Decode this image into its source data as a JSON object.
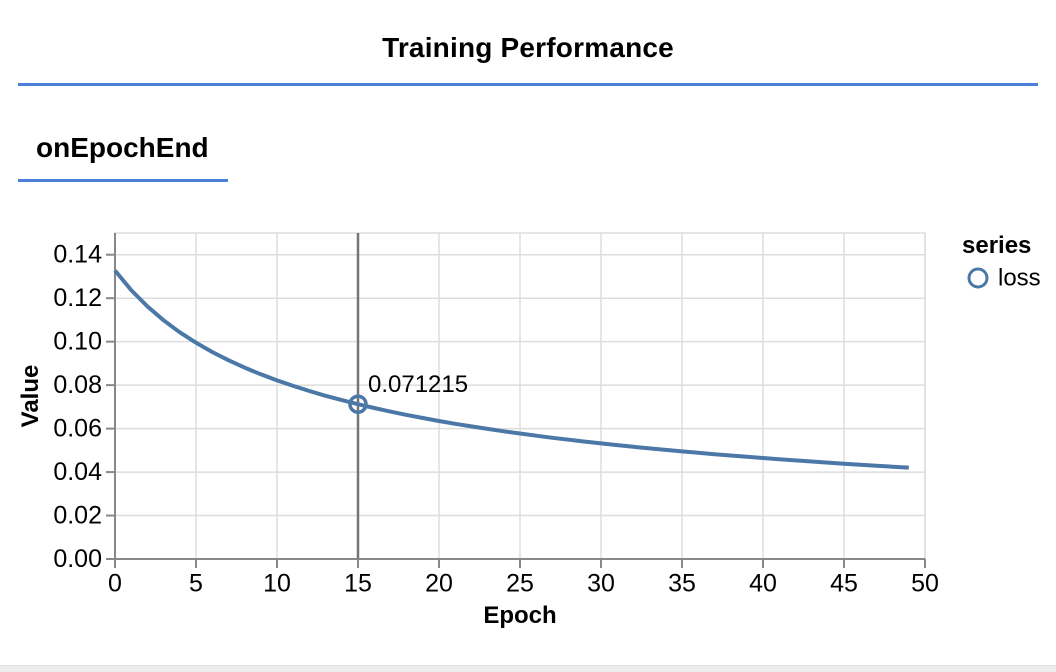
{
  "page": {
    "title": "Training Performance",
    "section_title": "onEpochEnd"
  },
  "colors": {
    "accent_rule": "#4a80d8",
    "series_loss": "#4c78a8",
    "grid": "#dddddd",
    "axis_domain": "#888888",
    "highlight_rule": "#767676",
    "text": "#000000"
  },
  "chart_data": {
    "type": "line",
    "title": "",
    "xlabel": "Epoch",
    "ylabel": "Value",
    "xlim": [
      0,
      50
    ],
    "ylim": [
      0,
      0.15
    ],
    "x_ticks": [
      0,
      5,
      10,
      15,
      20,
      25,
      30,
      35,
      40,
      45,
      50
    ],
    "y_ticks": [
      0.0,
      0.02,
      0.04,
      0.06,
      0.08,
      0.1,
      0.12,
      0.14
    ],
    "grid": true,
    "legend": {
      "title": "series",
      "position": "right",
      "entries": [
        {
          "label": "loss",
          "color": "#4c78a8",
          "marker": "circle"
        }
      ]
    },
    "series": [
      {
        "name": "loss",
        "color": "#4c78a8",
        "x": [
          0,
          1,
          2,
          3,
          4,
          5,
          6,
          7,
          8,
          9,
          10,
          11,
          12,
          13,
          14,
          15,
          16,
          17,
          18,
          19,
          20,
          21,
          22,
          23,
          24,
          25,
          26,
          27,
          28,
          29,
          30,
          31,
          32,
          33,
          34,
          35,
          36,
          37,
          38,
          39,
          40,
          41,
          42,
          43,
          44,
          45,
          46,
          47,
          48,
          49
        ],
        "values": [
          0.132726,
          0.123716,
          0.11621,
          0.109825,
          0.104312,
          0.099504,
          0.095258,
          0.091467,
          0.088064,
          0.084994,
          0.082192,
          0.079635,
          0.077282,
          0.075111,
          0.073094,
          0.071215,
          0.06948,
          0.06784,
          0.066315,
          0.064873,
          0.063518,
          0.062231,
          0.061017,
          0.059862,
          0.058771,
          0.057728,
          0.056738,
          0.055787,
          0.054885,
          0.054018,
          0.053187,
          0.052395,
          0.051625,
          0.050897,
          0.05019,
          0.049507,
          0.048853,
          0.048222,
          0.047608,
          0.047021,
          0.046451,
          0.045897,
          0.045364,
          0.04485,
          0.044346,
          0.043861,
          0.043389,
          0.042928,
          0.042484,
          0.042049
        ]
      }
    ],
    "highlight": {
      "x": 15,
      "value": 0.071215,
      "label": "0.071215"
    }
  }
}
